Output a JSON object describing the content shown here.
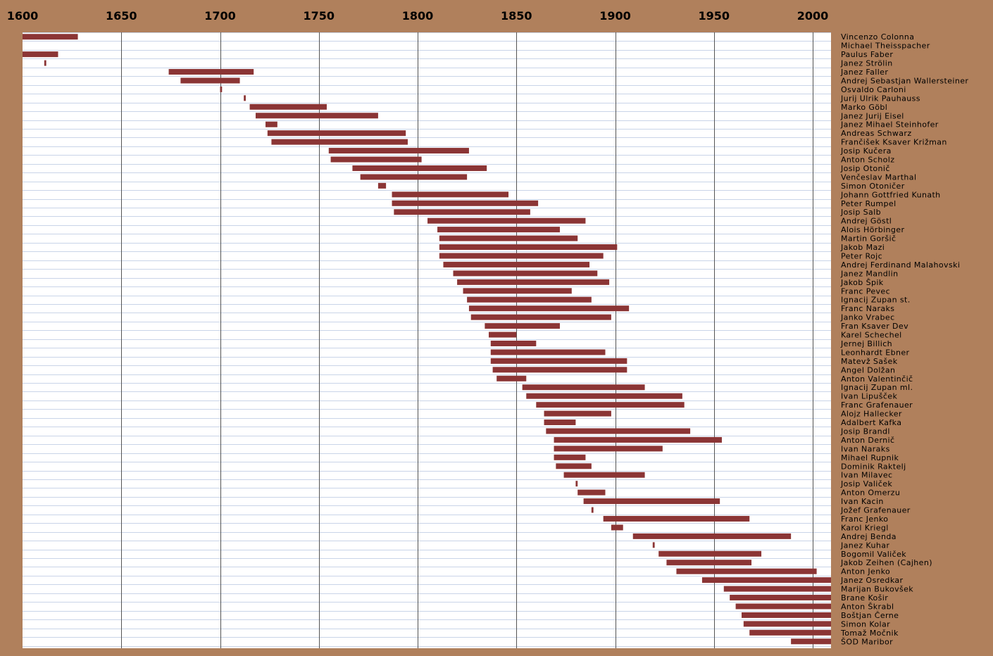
{
  "chart_data": {
    "type": "bar",
    "orientation": "horizontal-range",
    "xlim": [
      1600,
      2010
    ],
    "ticks": [
      1600,
      1650,
      1700,
      1750,
      1800,
      1850,
      1900,
      1950,
      2000
    ],
    "grid": true,
    "colors": {
      "bar": "#8b3535",
      "background": "#b0805c",
      "plot": "#ffffff",
      "gridline": "#c9d4e8",
      "major_gridline": "#555555"
    },
    "series": [
      {
        "name": "Vincenzo Colonna",
        "start": 1600,
        "end": 1628
      },
      {
        "name": "Michael Theisspacher",
        "start": null,
        "end": null
      },
      {
        "name": "Paulus Faber",
        "start": 1600,
        "end": 1618
      },
      {
        "name": "Janez Strölin",
        "start": 1611,
        "end": 1612
      },
      {
        "name": "Janez Faller",
        "start": 1674,
        "end": 1717
      },
      {
        "name": "Andrej Sebastjan Wallersteiner",
        "start": 1680,
        "end": 1710
      },
      {
        "name": "Osvaldo Carloni",
        "start": 1700,
        "end": 1701
      },
      {
        "name": "Jurij Ulrik Pauhauss",
        "start": 1712,
        "end": 1713
      },
      {
        "name": "Marko Göbl",
        "start": 1715,
        "end": 1754
      },
      {
        "name": "Janez Jurij Eisel",
        "start": 1718,
        "end": 1780
      },
      {
        "name": "Janez Mihael Steinhofer",
        "start": 1723,
        "end": 1729
      },
      {
        "name": "Andreas Schwarz",
        "start": 1724,
        "end": 1794
      },
      {
        "name": "Frančišek Ksaver Križman",
        "start": 1726,
        "end": 1795
      },
      {
        "name": "Josip Kučera",
        "start": 1755,
        "end": 1826
      },
      {
        "name": "Anton Scholz",
        "start": 1756,
        "end": 1802
      },
      {
        "name": "Josip Otonič",
        "start": 1767,
        "end": 1835
      },
      {
        "name": "Venčeslav Marthal",
        "start": 1771,
        "end": 1825
      },
      {
        "name": "Simon Otoničer",
        "start": 1780,
        "end": 1784
      },
      {
        "name": "Johann Gottfried Kunath",
        "start": 1787,
        "end": 1846
      },
      {
        "name": "Peter Rumpel",
        "start": 1787,
        "end": 1861
      },
      {
        "name": "Josip Salb",
        "start": 1788,
        "end": 1857
      },
      {
        "name": "Andrej Göstl",
        "start": 1805,
        "end": 1885
      },
      {
        "name": "Alois Hörbinger",
        "start": 1810,
        "end": 1872
      },
      {
        "name": "Martin Goršič",
        "start": 1811,
        "end": 1881
      },
      {
        "name": "Jakob Mazi",
        "start": 1811,
        "end": 1901
      },
      {
        "name": "Peter Rojc",
        "start": 1811,
        "end": 1894
      },
      {
        "name": "Andrej Ferdinand Malahovski",
        "start": 1813,
        "end": 1887
      },
      {
        "name": "Janez Mandlin",
        "start": 1818,
        "end": 1891
      },
      {
        "name": "Jakob Špik",
        "start": 1820,
        "end": 1897
      },
      {
        "name": "Franc Pevec",
        "start": 1823,
        "end": 1878
      },
      {
        "name": "Ignacij Zupan st.",
        "start": 1825,
        "end": 1888
      },
      {
        "name": "Franc Naraks",
        "start": 1826,
        "end": 1907
      },
      {
        "name": "Janko Vrabec",
        "start": 1827,
        "end": 1898
      },
      {
        "name": "Fran Ksaver Dev",
        "start": 1834,
        "end": 1872
      },
      {
        "name": "Karel Schechel",
        "start": 1836,
        "end": 1850
      },
      {
        "name": "Jernej Billich",
        "start": 1837,
        "end": 1860
      },
      {
        "name": "Leonhardt Ebner",
        "start": 1837,
        "end": 1895
      },
      {
        "name": "Matevž Sašek",
        "start": 1837,
        "end": 1906
      },
      {
        "name": "Angel Dolžan",
        "start": 1838,
        "end": 1906
      },
      {
        "name": "Anton Valentinčič",
        "start": 1840,
        "end": 1855
      },
      {
        "name": "Ignacij Zupan ml.",
        "start": 1853,
        "end": 1915
      },
      {
        "name": "Ivan Lipušček",
        "start": 1855,
        "end": 1934
      },
      {
        "name": "Franc Grafenauer",
        "start": 1860,
        "end": 1935
      },
      {
        "name": "Alojz Hallecker",
        "start": 1864,
        "end": 1898
      },
      {
        "name": "Adalbert Kafka",
        "start": 1864,
        "end": 1880
      },
      {
        "name": "Josip Brandl",
        "start": 1865,
        "end": 1938
      },
      {
        "name": "Anton Dernič",
        "start": 1869,
        "end": 1954
      },
      {
        "name": "Ivan Naraks",
        "start": 1869,
        "end": 1924
      },
      {
        "name": "Mihael Rupnik",
        "start": 1869,
        "end": 1885
      },
      {
        "name": "Dominik Raktelj",
        "start": 1870,
        "end": 1888
      },
      {
        "name": "Ivan Milavec",
        "start": 1874,
        "end": 1915
      },
      {
        "name": "Josip Valiček",
        "start": 1880,
        "end": 1881
      },
      {
        "name": "Anton Omerzu",
        "start": 1881,
        "end": 1895
      },
      {
        "name": "Ivan Kacin",
        "start": 1884,
        "end": 1953
      },
      {
        "name": "Jožef Grafenauer",
        "start": 1888,
        "end": 1889
      },
      {
        "name": "Franc Jenko",
        "start": 1894,
        "end": 1968
      },
      {
        "name": "Karol Kriegl",
        "start": 1898,
        "end": 1904
      },
      {
        "name": "Andrej Benda",
        "start": 1909,
        "end": 1989
      },
      {
        "name": "Janez Kuhar",
        "start": 1919,
        "end": 1920
      },
      {
        "name": "Bogomil Valiček",
        "start": 1922,
        "end": 1974
      },
      {
        "name": "Jakob Zeihen (Cajhen)",
        "start": 1926,
        "end": 1969
      },
      {
        "name": "Anton Jenko",
        "start": 1931,
        "end": 2002
      },
      {
        "name": "Janez Osredkar",
        "start": 1944,
        "end": 2010
      },
      {
        "name": "Marijan Bukovšek",
        "start": 1955,
        "end": 2010
      },
      {
        "name": "Brane Košir",
        "start": 1958,
        "end": 2010
      },
      {
        "name": "Anton Škrabl",
        "start": 1961,
        "end": 2010
      },
      {
        "name": "Boštjan Černe",
        "start": 1964,
        "end": 2010
      },
      {
        "name": "Simon Kolar",
        "start": 1965,
        "end": 2010
      },
      {
        "name": "Tomaž Močnik",
        "start": 1968,
        "end": 2010
      },
      {
        "name": "ŠOD Maribor",
        "start": 1989,
        "end": 2010
      }
    ]
  }
}
